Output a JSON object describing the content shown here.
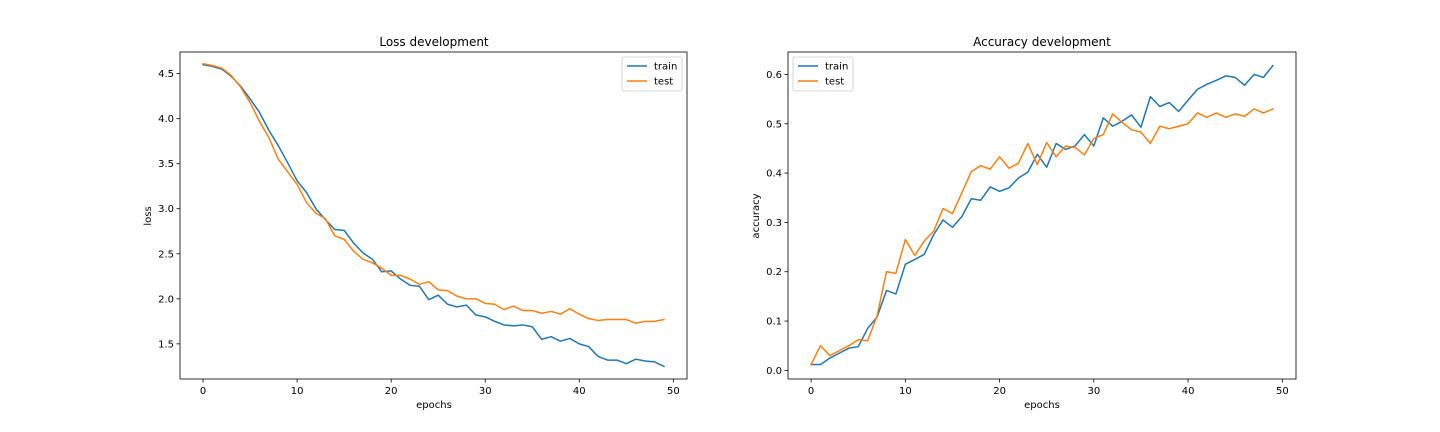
{
  "chart_data": [
    {
      "type": "line",
      "title": "Loss development",
      "xlabel": "epochs",
      "ylabel": "loss",
      "xlim": [
        -2.45,
        51.45
      ],
      "ylim": [
        1.11,
        4.74
      ],
      "xticks": [
        0,
        10,
        20,
        30,
        40,
        50
      ],
      "yticks": [
        1.5,
        2.0,
        2.5,
        3.0,
        3.5,
        4.0,
        4.5
      ],
      "ytick_labels": [
        "1.5",
        "2.0",
        "2.5",
        "3.0",
        "3.5",
        "4.0",
        "4.5"
      ],
      "legend_position": "upper right",
      "grid": false,
      "x": [
        0,
        1,
        2,
        3,
        4,
        5,
        6,
        7,
        8,
        9,
        10,
        11,
        12,
        13,
        14,
        15,
        16,
        17,
        18,
        19,
        20,
        21,
        22,
        23,
        24,
        25,
        26,
        27,
        28,
        29,
        30,
        31,
        32,
        33,
        34,
        35,
        36,
        37,
        38,
        39,
        40,
        41,
        42,
        43,
        44,
        45,
        46,
        47,
        48,
        49
      ],
      "series": [
        {
          "name": "train",
          "color": "#1f77b4",
          "values": [
            4.6,
            4.58,
            4.55,
            4.47,
            4.36,
            4.22,
            4.07,
            3.87,
            3.7,
            3.51,
            3.31,
            3.18,
            3.0,
            2.88,
            2.77,
            2.76,
            2.62,
            2.51,
            2.44,
            2.3,
            2.31,
            2.22,
            2.15,
            2.14,
            1.99,
            2.04,
            1.94,
            1.91,
            1.93,
            1.82,
            1.8,
            1.75,
            1.71,
            1.7,
            1.71,
            1.69,
            1.55,
            1.58,
            1.53,
            1.56,
            1.5,
            1.47,
            1.36,
            1.32,
            1.32,
            1.28,
            1.33,
            1.31,
            1.3,
            1.25
          ]
        },
        {
          "name": "test",
          "color": "#ff7f0e",
          "values": [
            4.61,
            4.59,
            4.56,
            4.48,
            4.35,
            4.18,
            3.97,
            3.79,
            3.55,
            3.41,
            3.27,
            3.07,
            2.95,
            2.89,
            2.7,
            2.66,
            2.53,
            2.44,
            2.4,
            2.34,
            2.26,
            2.26,
            2.22,
            2.16,
            2.19,
            2.1,
            2.09,
            2.03,
            2.0,
            2.0,
            1.95,
            1.94,
            1.88,
            1.92,
            1.87,
            1.87,
            1.84,
            1.86,
            1.83,
            1.89,
            1.83,
            1.78,
            1.76,
            1.77,
            1.77,
            1.77,
            1.73,
            1.75,
            1.75,
            1.77
          ]
        }
      ]
    },
    {
      "type": "line",
      "title": "Accuracy development",
      "xlabel": "epochs",
      "ylabel": "accuracy",
      "xlim": [
        -2.45,
        51.45
      ],
      "ylim": [
        -0.0175,
        0.6455
      ],
      "xticks": [
        0,
        10,
        20,
        30,
        40,
        50
      ],
      "yticks": [
        0.0,
        0.1,
        0.2,
        0.3,
        0.4,
        0.5,
        0.6
      ],
      "ytick_labels": [
        "0.0",
        "0.1",
        "0.2",
        "0.3",
        "0.4",
        "0.5",
        "0.6"
      ],
      "legend_position": "upper left",
      "grid": false,
      "x": [
        0,
        1,
        2,
        3,
        4,
        5,
        6,
        7,
        8,
        9,
        10,
        11,
        12,
        13,
        14,
        15,
        16,
        17,
        18,
        19,
        20,
        21,
        22,
        23,
        24,
        25,
        26,
        27,
        28,
        29,
        30,
        31,
        32,
        33,
        34,
        35,
        36,
        37,
        38,
        39,
        40,
        41,
        42,
        43,
        44,
        45,
        46,
        47,
        48,
        49
      ],
      "series": [
        {
          "name": "train",
          "color": "#1f77b4",
          "values": [
            0.012,
            0.012,
            0.025,
            0.035,
            0.045,
            0.048,
            0.085,
            0.108,
            0.162,
            0.155,
            0.215,
            0.225,
            0.235,
            0.275,
            0.305,
            0.29,
            0.312,
            0.348,
            0.345,
            0.372,
            0.363,
            0.37,
            0.39,
            0.402,
            0.438,
            0.412,
            0.46,
            0.448,
            0.455,
            0.478,
            0.455,
            0.512,
            0.495,
            0.505,
            0.518,
            0.493,
            0.555,
            0.535,
            0.543,
            0.525,
            0.548,
            0.57,
            0.58,
            0.588,
            0.597,
            0.594,
            0.578,
            0.6,
            0.594,
            0.618
          ]
        },
        {
          "name": "test",
          "color": "#ff7f0e",
          "values": [
            0.012,
            0.05,
            0.03,
            0.04,
            0.05,
            0.062,
            0.06,
            0.11,
            0.2,
            0.197,
            0.265,
            0.233,
            0.262,
            0.282,
            0.328,
            0.318,
            0.36,
            0.403,
            0.415,
            0.408,
            0.433,
            0.41,
            0.42,
            0.46,
            0.417,
            0.462,
            0.433,
            0.455,
            0.452,
            0.437,
            0.47,
            0.478,
            0.52,
            0.503,
            0.488,
            0.483,
            0.46,
            0.495,
            0.49,
            0.495,
            0.5,
            0.522,
            0.513,
            0.522,
            0.513,
            0.52,
            0.515,
            0.53,
            0.522,
            0.53
          ]
        }
      ]
    }
  ]
}
